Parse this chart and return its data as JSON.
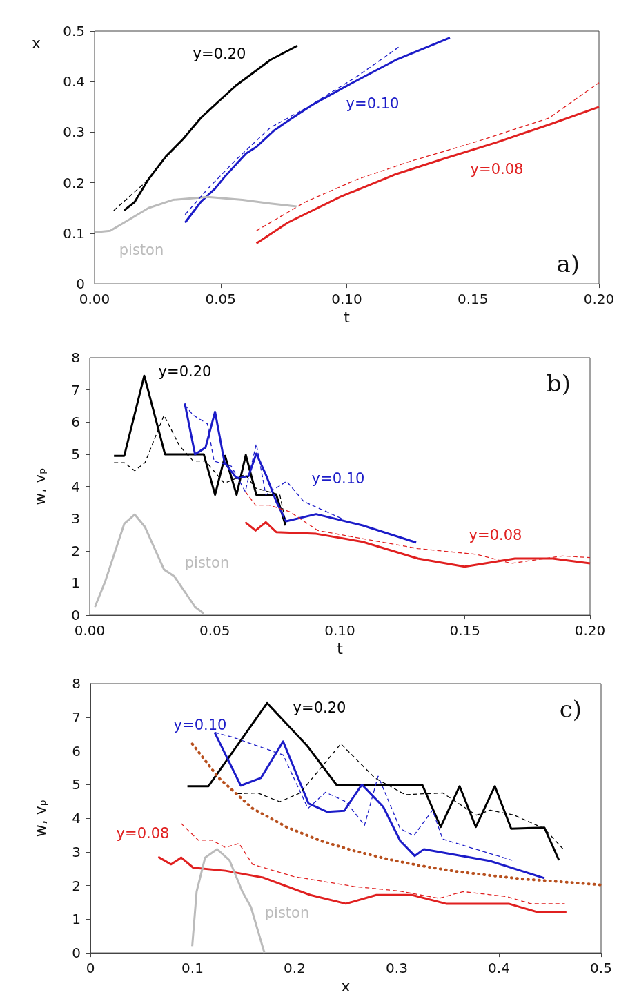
{
  "chart_data": [
    {
      "type": "line",
      "xlabel": "t",
      "ylabel": "x",
      "xlim": [
        0,
        0.2
      ],
      "ylim": [
        0,
        0.5
      ],
      "xticks": [
        {
          "value": 0,
          "label": "0.00"
        },
        0.05,
        {
          "value": 0.1,
          "label": "0.10"
        },
        0.15,
        {
          "value": 0.2,
          "label": "0.20"
        }
      ],
      "yticks": [
        0,
        0.1,
        0.2,
        0.3,
        0.4,
        0.5
      ],
      "marker": "none",
      "grid": false,
      "series": [
        {
          "color": "#000000",
          "line_style": "dashed",
          "x": [
            0.0076,
            0.02,
            0.0283,
            0.0352,
            0.0421,
            0.049,
            0.056,
            0.0628,
            0.0697,
            0.0804
          ],
          "values": [
            0.145,
            0.2,
            0.252,
            0.287,
            0.328,
            0.36,
            0.392,
            0.417,
            0.443,
            0.471
          ]
        },
        {
          "name": "y=0.20",
          "color": "#000000",
          "line_style": "solid",
          "x": [
            0.0117,
            0.0159,
            0.0214,
            0.0283,
            0.0352,
            0.0421,
            0.049,
            0.056,
            0.0628,
            0.0697,
            0.0804
          ],
          "values": [
            0.145,
            0.162,
            0.207,
            0.252,
            0.287,
            0.328,
            0.36,
            0.392,
            0.417,
            0.443,
            0.471
          ]
        },
        {
          "color": "#1c1cc8",
          "line_style": "dashed",
          "x": [
            0.0359,
            0.0449,
            0.056,
            0.0697,
            0.0836,
            0.1043,
            0.1208
          ],
          "values": [
            0.137,
            0.188,
            0.245,
            0.309,
            0.347,
            0.411,
            0.469
          ]
        },
        {
          "name": "y=0.10",
          "color": "#1c1cc8",
          "line_style": "solid",
          "x": [
            0.0359,
            0.0421,
            0.0477,
            0.0518,
            0.0601,
            0.0642,
            0.0711,
            0.0766,
            0.0863,
            0.1001,
            0.1195,
            0.1409
          ],
          "values": [
            0.121,
            0.162,
            0.188,
            0.213,
            0.258,
            0.271,
            0.303,
            0.322,
            0.354,
            0.392,
            0.443,
            0.487
          ]
        },
        {
          "color": "#e02020",
          "line_style": "dashed",
          "x": [
            0.0642,
            0.0836,
            0.1043,
            0.125,
            0.1526,
            0.1802,
            0.2
          ],
          "values": [
            0.105,
            0.162,
            0.207,
            0.242,
            0.283,
            0.328,
            0.398
          ]
        },
        {
          "name": "y=0.08",
          "color": "#e02020",
          "line_style": "solid",
          "x": [
            0.0642,
            0.0766,
            0.0974,
            0.1195,
            0.1388,
            0.1595,
            0.1802,
            0.2
          ],
          "values": [
            0.08,
            0.121,
            0.172,
            0.217,
            0.248,
            0.28,
            0.315,
            0.35
          ]
        },
        {
          "name": "piston",
          "color": "#bbbbbb",
          "line_style": "solid",
          "x": [
            0,
            0.0062,
            0.0117,
            0.0214,
            0.031,
            0.0449,
            0.0587,
            0.0697,
            0.0801
          ],
          "values": [
            0.102,
            0.105,
            0.121,
            0.15,
            0.166,
            0.172,
            0.166,
            0.159,
            0.153
          ]
        }
      ],
      "annotations": [
        "a)"
      ]
    },
    {
      "type": "line",
      "xlabel": "t",
      "ylabel": "w, vₚ",
      "xlim": [
        0,
        0.2
      ],
      "ylim": [
        0,
        8
      ],
      "xticks": [
        {
          "value": 0,
          "label": "0.00"
        },
        0.05,
        {
          "value": 0.1,
          "label": "0.10"
        },
        0.15,
        {
          "value": 0.2,
          "label": "0.20"
        }
      ],
      "yticks": [
        0,
        1,
        2,
        3,
        4,
        5,
        6,
        7,
        8
      ],
      "marker": "none",
      "grid": false,
      "series": [
        {
          "color": "#000000",
          "line_style": "dashed",
          "x": [
            0.0097,
            0.0138,
            0.018,
            0.0221,
            0.0297,
            0.0359,
            0.0414,
            0.0463,
            0.0538,
            0.0622,
            0.0663,
            0.076,
            0.078
          ],
          "values": [
            4.74,
            4.74,
            4.49,
            4.74,
            6.21,
            5.26,
            4.79,
            4.79,
            4.1,
            4.37,
            3.95,
            3.74,
            3.0
          ]
        },
        {
          "name": "y=0.20",
          "color": "#000000",
          "line_style": "solid",
          "x": [
            0.0097,
            0.0138,
            0.0218,
            0.0301,
            0.0456,
            0.0501,
            0.0541,
            0.0587,
            0.0624,
            0.0666,
            0.0746,
            0.0783
          ],
          "values": [
            4.95,
            4.95,
            7.44,
            5.0,
            5.0,
            3.74,
            4.95,
            3.74,
            4.98,
            3.74,
            3.74,
            2.79
          ]
        },
        {
          "color": "#1c1cc8",
          "line_style": "dashed",
          "x": [
            0.038,
            0.0414,
            0.047,
            0.0497,
            0.0566,
            0.0622,
            0.0666,
            0.0704,
            0.0787,
            0.0856,
            0.1008
          ],
          "values": [
            6.53,
            6.21,
            5.95,
            4.79,
            4.63,
            3.84,
            5.32,
            3.74,
            4.16,
            3.53,
            3.0
          ]
        },
        {
          "name": "y=0.10",
          "color": "#1c1cc8",
          "line_style": "solid",
          "x": [
            0.038,
            0.0421,
            0.0463,
            0.0501,
            0.0539,
            0.0587,
            0.0635,
            0.0666,
            0.0704,
            0.0746,
            0.0785,
            0.0905,
            0.1091,
            0.1305
          ],
          "values": [
            6.58,
            5.0,
            5.21,
            6.32,
            4.74,
            4.26,
            4.32,
            5.02,
            4.37,
            3.53,
            2.92,
            3.14,
            2.79,
            2.26
          ]
        },
        {
          "color": "#e02020",
          "line_style": "dashed",
          "x": [
            0.0622,
            0.0663,
            0.0718,
            0.0801,
            0.0912,
            0.1133,
            0.1312,
            0.1547,
            0.1685,
            0.189,
            0.2
          ],
          "values": [
            3.84,
            3.42,
            3.42,
            3.21,
            2.63,
            2.32,
            2.07,
            1.89,
            1.61,
            1.84,
            1.79
          ]
        },
        {
          "name": "y=0.08",
          "color": "#e02020",
          "line_style": "solid",
          "x": [
            0.0622,
            0.0663,
            0.0704,
            0.0746,
            0.0905,
            0.1091,
            0.1312,
            0.1499,
            0.17,
            0.1851,
            0.2
          ],
          "values": [
            2.89,
            2.63,
            2.89,
            2.58,
            2.53,
            2.28,
            1.76,
            1.51,
            1.76,
            1.76,
            1.61
          ]
        },
        {
          "name": "piston",
          "color": "#bbbbbb",
          "line_style": "solid",
          "x": [
            0.0021,
            0.0062,
            0.0138,
            0.018,
            0.0221,
            0.0297,
            0.0338,
            0.0421,
            0.0456
          ],
          "values": [
            0.26,
            1.05,
            2.84,
            3.13,
            2.74,
            1.42,
            1.21,
            0.26,
            0.05
          ]
        }
      ],
      "annotations": [
        "b)"
      ]
    },
    {
      "type": "line",
      "xlabel": "x",
      "ylabel": "w, vₚ",
      "xlim": [
        0,
        0.5
      ],
      "ylim": [
        0,
        8
      ],
      "xticks": [
        0,
        0.1,
        0.2,
        0.3,
        0.4,
        0.5
      ],
      "yticks": [
        0,
        1,
        2,
        3,
        4,
        5,
        6,
        7,
        8
      ],
      "marker": "none",
      "grid": false,
      "series": [
        {
          "color": "#000000",
          "line_style": "dashed",
          "x": [
            0.1439,
            0.1638,
            0.1854,
            0.2053,
            0.2452,
            0.2784,
            0.3083,
            0.3449,
            0.378,
            0.3914,
            0.415,
            0.4445,
            0.4645
          ],
          "values": [
            4.73,
            4.75,
            4.49,
            4.75,
            6.21,
            5.2,
            4.7,
            4.75,
            4.09,
            4.24,
            4.09,
            3.69,
            3.03
          ]
        },
        {
          "name": "y=0.20",
          "color": "#000000",
          "line_style": "solid",
          "x": [
            0.095,
            0.1156,
            0.173,
            0.212,
            0.241,
            0.325,
            0.343,
            0.3615,
            0.3774,
            0.396,
            0.412,
            0.4445,
            0.4588
          ],
          "values": [
            4.95,
            4.95,
            7.42,
            6.16,
            4.99,
            4.99,
            3.74,
            4.95,
            3.74,
            4.95,
            3.69,
            3.72,
            2.75
          ]
        },
        {
          "color": "#1c1cc8",
          "line_style": "dashed",
          "x": [
            0.1216,
            0.1389,
            0.1887,
            0.213,
            0.2302,
            0.2502,
            0.2684,
            0.2817,
            0.3033,
            0.3166,
            0.335,
            0.3449,
            0.413
          ],
          "values": [
            6.55,
            6.41,
            5.88,
            4.29,
            4.77,
            4.49,
            3.79,
            5.25,
            3.69,
            3.48,
            4.24,
            3.38,
            2.75
          ]
        },
        {
          "name": "y=0.10",
          "color": "#1c1cc8",
          "line_style": "solid",
          "x": [
            0.1216,
            0.1472,
            0.1671,
            0.1887,
            0.2136,
            0.2319,
            0.2485,
            0.2658,
            0.2867,
            0.3033,
            0.3176,
            0.3266,
            0.3914,
            0.4445
          ],
          "values": [
            6.55,
            4.97,
            5.2,
            6.28,
            4.44,
            4.19,
            4.22,
            5.0,
            4.34,
            3.33,
            2.88,
            3.08,
            2.73,
            2.22
          ]
        },
        {
          "color": "#e02020",
          "line_style": "dashed",
          "x": [
            0.089,
            0.1056,
            0.119,
            0.1322,
            0.1455,
            0.1588,
            0.1987,
            0.2585,
            0.3017,
            0.3415,
            0.3648,
            0.408,
            0.4312,
            0.4645
          ],
          "values": [
            3.84,
            3.35,
            3.35,
            3.13,
            3.25,
            2.63,
            2.27,
            1.97,
            1.84,
            1.62,
            1.82,
            1.67,
            1.46,
            1.46
          ]
        },
        {
          "name": "y=0.08",
          "color": "#e02020",
          "line_style": "solid",
          "x": [
            0.0664,
            0.079,
            0.089,
            0.1007,
            0.1322,
            0.1688,
            0.2153,
            0.2502,
            0.28,
            0.315,
            0.3482,
            0.4096,
            0.4379,
            0.4661
          ],
          "values": [
            2.85,
            2.63,
            2.83,
            2.53,
            2.44,
            2.24,
            1.72,
            1.46,
            1.72,
            1.72,
            1.46,
            1.46,
            1.21,
            1.21
          ]
        },
        {
          "color": "#b8501e",
          "line_style": "dotted",
          "x": [
            0.0997,
            0.1256,
            0.1588,
            0.192,
            0.2252,
            0.2585,
            0.2917,
            0.3249,
            0.3581,
            0.3914,
            0.4246,
            0.4578,
            0.5
          ],
          "values": [
            6.21,
            5.2,
            4.29,
            3.74,
            3.33,
            3.03,
            2.78,
            2.58,
            2.42,
            2.3,
            2.19,
            2.12,
            2.02
          ]
        },
        {
          "name": "piston",
          "color": "#bbbbbb",
          "line_style": "solid",
          "x": [
            0.0997,
            0.104,
            0.1123,
            0.124,
            0.1362,
            0.1488,
            0.1572,
            0.1704
          ],
          "values": [
            0.2,
            1.82,
            2.83,
            3.08,
            2.75,
            1.82,
            1.36,
            0.0
          ]
        }
      ],
      "annotations": [
        "c)"
      ]
    }
  ]
}
